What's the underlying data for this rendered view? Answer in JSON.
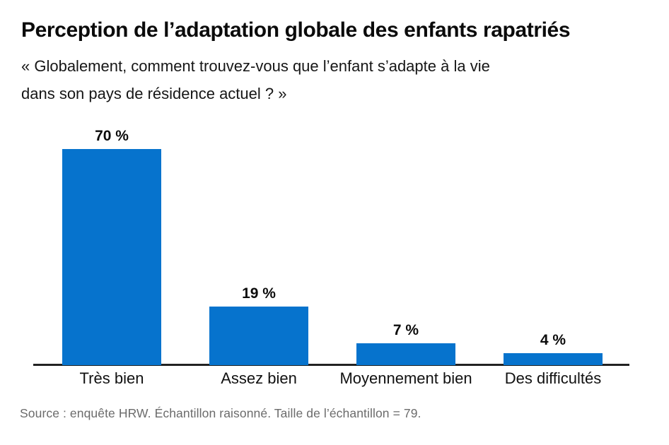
{
  "header": {
    "title": "Perception de l’adaptation globale des enfants rapatriés",
    "subtitle_line1": "« Globalement, comment trouvez-vous que l’enfant s’adapte à la vie",
    "subtitle_line2": "dans son pays de résidence actuel ? »"
  },
  "chart_data": {
    "type": "bar",
    "title": "Perception de l’adaptation globale des enfants rapatriés",
    "categories": [
      "Très bien",
      "Assez bien",
      "Moyennement bien",
      "Des difficultés"
    ],
    "values": [
      70,
      19,
      7,
      4
    ],
    "value_labels": [
      "70 %",
      "19 %",
      "7 %",
      "4 %"
    ],
    "xlabel": "",
    "ylabel": "",
    "ylim": [
      0,
      75
    ],
    "grid": false,
    "legend": false,
    "bar_color": "#0673cd",
    "axis_color": "#222222"
  },
  "footer": {
    "source": "Source : enquête HRW. Échantillon raisonné. Taille de l’échantillon = 79."
  }
}
